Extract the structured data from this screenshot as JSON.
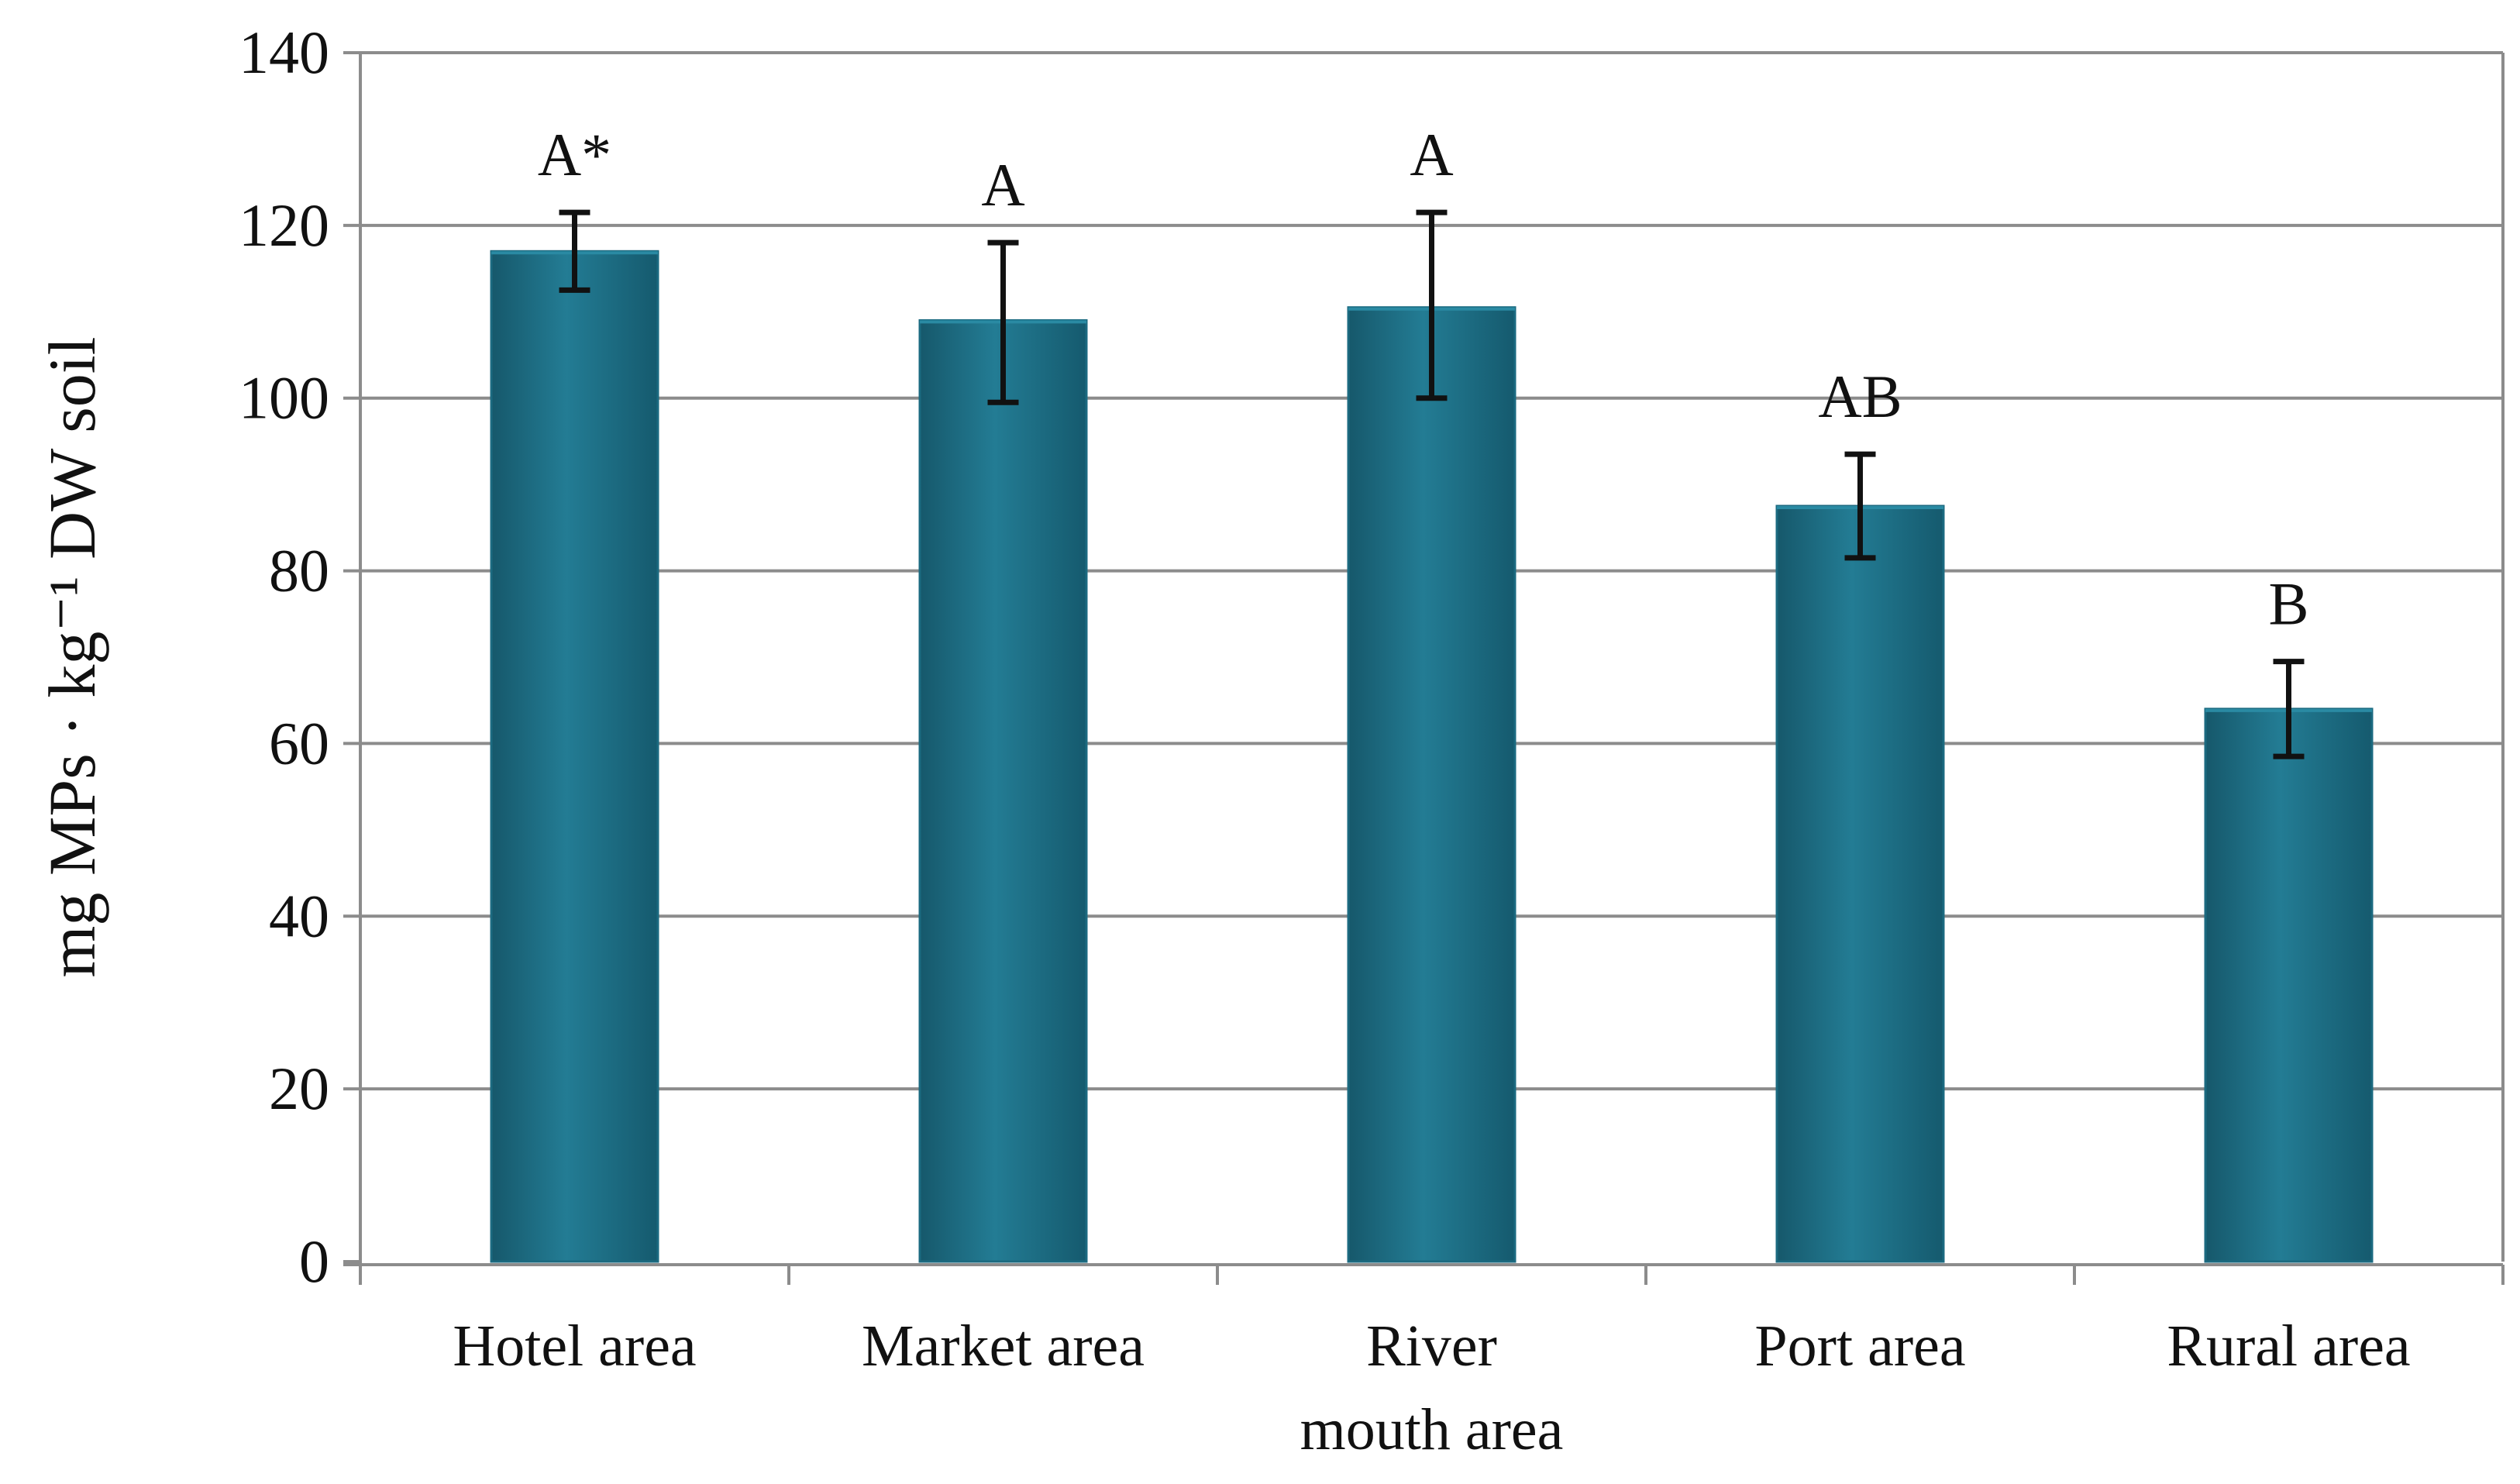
{
  "chart_data": {
    "type": "bar",
    "title": "",
    "xlabel": "",
    "ylabel": "mg MPs · kg⁻¹ DW soil",
    "ylim": [
      0,
      140
    ],
    "yticks": [
      0,
      20,
      40,
      60,
      80,
      100,
      120,
      140
    ],
    "grid": true,
    "legend": "none",
    "categories": [
      "Hotel area",
      "Market area",
      "River mouth area",
      "Port area",
      "Rural area"
    ],
    "category_lines": [
      [
        "Hotel area"
      ],
      [
        "Market area"
      ],
      [
        "River",
        "mouth area"
      ],
      [
        "Port area"
      ],
      [
        "Rural area"
      ]
    ],
    "values": [
      117,
      109,
      110.5,
      87.5,
      64
    ],
    "error_low": [
      112.5,
      99.5,
      100,
      81.5,
      58.5
    ],
    "error_high": [
      121.5,
      118,
      121.5,
      93.5,
      69.5
    ],
    "significance_labels": [
      "A*",
      "A",
      "A",
      "AB",
      "B"
    ],
    "colors": {
      "bar": "#1b6a80",
      "bar_highlight": "#2a8aa3",
      "error_bar": "#111111",
      "grid": "#8c8c8c",
      "axis": "#8c8c8c"
    }
  }
}
